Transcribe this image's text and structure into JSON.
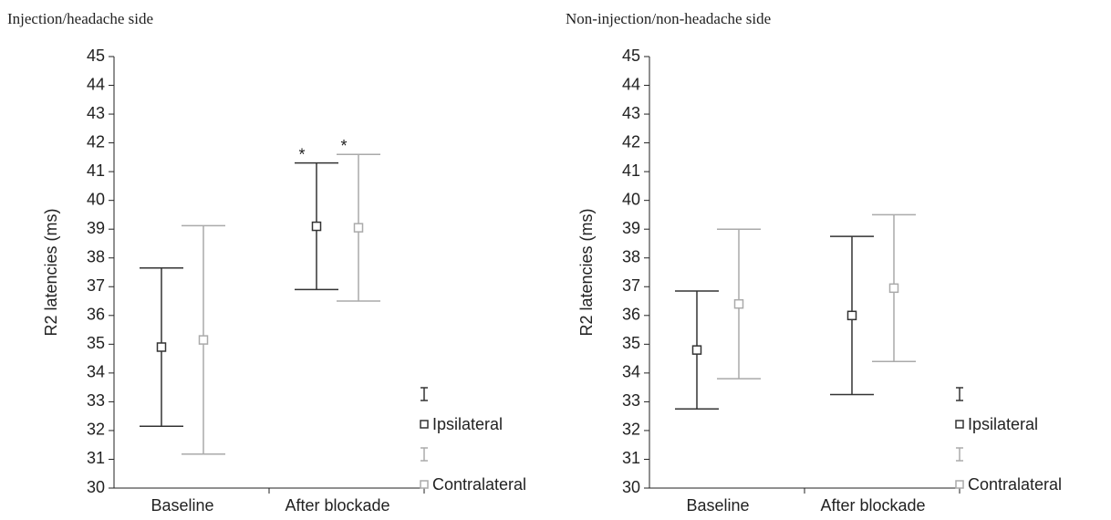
{
  "chart_data": [
    {
      "type": "errorbar",
      "title": "Injection/headache side",
      "ylabel": "R2 latencies (ms)",
      "categories": [
        "Baseline",
        "After blockade"
      ],
      "series": [
        {
          "name": "Ipsilateral",
          "color": "#333333",
          "values": [
            34.9,
            39.1
          ],
          "errors": [
            2.75,
            2.2
          ]
        },
        {
          "name": "Contralateral",
          "color": "#aaaaaa",
          "values": [
            35.15,
            39.05
          ],
          "errors": [
            3.97,
            2.55
          ]
        }
      ],
      "annotations": [
        "*",
        "*"
      ],
      "ylim": [
        30,
        45
      ],
      "yticks": [
        30,
        31,
        32,
        33,
        34,
        35,
        36,
        37,
        38,
        39,
        40,
        41,
        42,
        43,
        44,
        45
      ]
    },
    {
      "type": "errorbar",
      "title": "Non-injection/non-headache side",
      "ylabel": "R2 latencies (ms)",
      "categories": [
        "Baseline",
        "After blockade"
      ],
      "series": [
        {
          "name": "Ipsilateral",
          "color": "#333333",
          "values": [
            34.8,
            36.0
          ],
          "errors": [
            2.05,
            2.75
          ]
        },
        {
          "name": "Contralateral",
          "color": "#aaaaaa",
          "values": [
            36.4,
            36.95
          ],
          "errors": [
            2.6,
            2.55
          ]
        }
      ],
      "ylim": [
        30,
        45
      ],
      "yticks": [
        30,
        31,
        32,
        33,
        34,
        35,
        36,
        37,
        38,
        39,
        40,
        41,
        42,
        43,
        44,
        45
      ]
    }
  ]
}
